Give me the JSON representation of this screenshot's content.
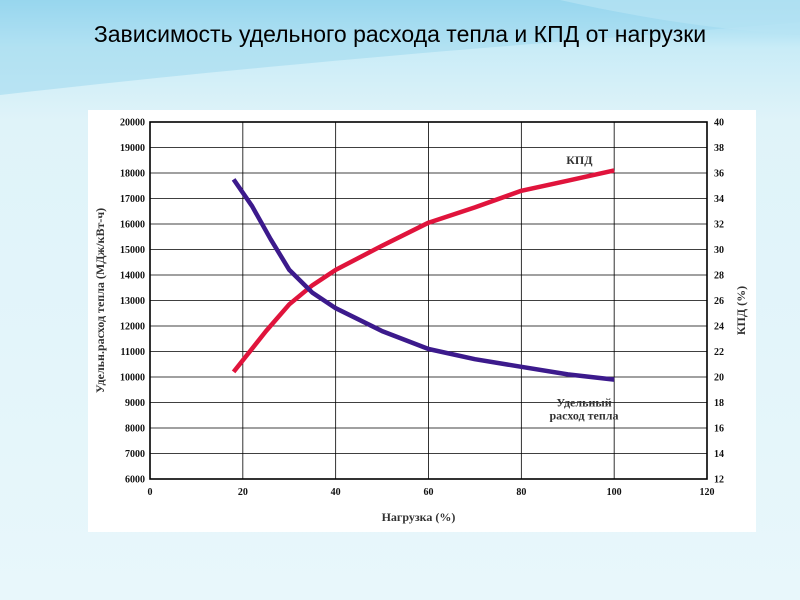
{
  "slide": {
    "title": "Зависимость удельного расхода тепла и КПД от нагрузки"
  },
  "chart_data": {
    "type": "line",
    "xlabel": "Нагрузка (%)",
    "ylabel_left": "Удельн.расход тепла (МДж/кВт-ч)",
    "ylabel_right": "КПД (%)",
    "xlim": [
      0,
      120
    ],
    "ylim_left": [
      6000,
      20000
    ],
    "ylim_right": [
      12,
      40
    ],
    "x_ticks": [
      0,
      20,
      40,
      60,
      80,
      100,
      120
    ],
    "y_left_ticks": [
      6000,
      7000,
      8000,
      9000,
      10000,
      11000,
      12000,
      13000,
      14000,
      15000,
      16000,
      17000,
      18000,
      19000,
      20000
    ],
    "y_right_ticks": [
      12,
      14,
      16,
      18,
      20,
      22,
      24,
      26,
      28,
      30,
      32,
      34,
      36,
      38,
      40
    ],
    "grid": true,
    "series": [
      {
        "name": "КПД",
        "axis": "right",
        "color": "#e0143c",
        "x": [
          18,
          25,
          30,
          35,
          40,
          50,
          60,
          70,
          80,
          90,
          100
        ],
        "y": [
          20.4,
          23.6,
          25.7,
          27.2,
          28.4,
          30.3,
          32.1,
          33.3,
          34.6,
          35.4,
          36.2
        ]
      },
      {
        "name": "Удельный расход тепла",
        "label_lines": [
          "Удельный",
          "расход тепла"
        ],
        "axis": "left",
        "color": "#3c1a8c",
        "x": [
          18,
          22,
          26,
          30,
          35,
          40,
          50,
          60,
          70,
          80,
          90,
          100
        ],
        "y": [
          17750,
          16700,
          15400,
          14200,
          13300,
          12700,
          11800,
          11100,
          10700,
          10400,
          10100,
          9900
        ]
      }
    ]
  }
}
